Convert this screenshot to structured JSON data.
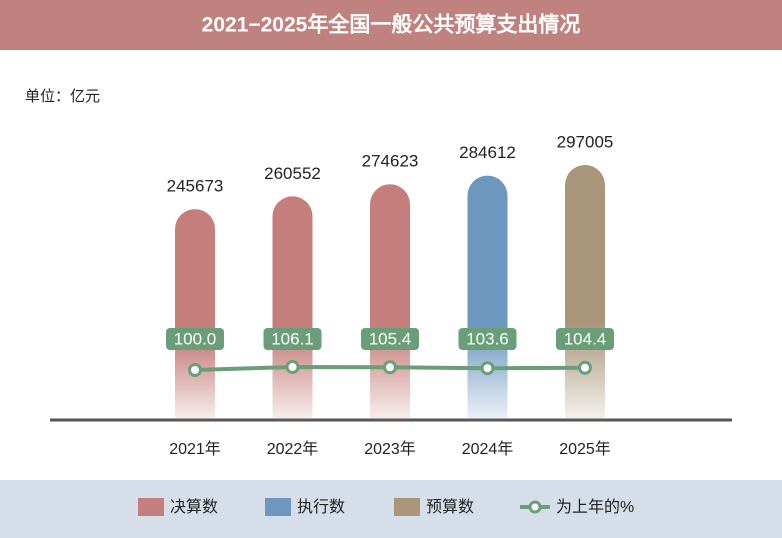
{
  "chart_data": {
    "type": "bar",
    "title": "2021−2025年全国一般公共预算支出情况",
    "unit": "单位：亿元",
    "categories": [
      "2021年",
      "2022年",
      "2023年",
      "2024年",
      "2025年"
    ],
    "series": [
      {
        "name": "决算数",
        "type": "bar",
        "color": "#c47f7c",
        "values": [
          245673,
          260552,
          274623,
          null,
          null
        ]
      },
      {
        "name": "执行数",
        "type": "bar",
        "color": "#6e97c0",
        "values": [
          null,
          null,
          null,
          284612,
          null
        ]
      },
      {
        "name": "预算数",
        "type": "bar",
        "color": "#a8957a",
        "values": [
          null,
          null,
          null,
          null,
          297005
        ]
      },
      {
        "name": "为上年的%",
        "type": "line",
        "color": "#6a9e78",
        "values": [
          100.0,
          106.1,
          105.4,
          103.6,
          104.4
        ],
        "value_labels": [
          "100.0",
          "106.1",
          "105.4",
          "103.6",
          "104.4"
        ]
      }
    ]
  }
}
